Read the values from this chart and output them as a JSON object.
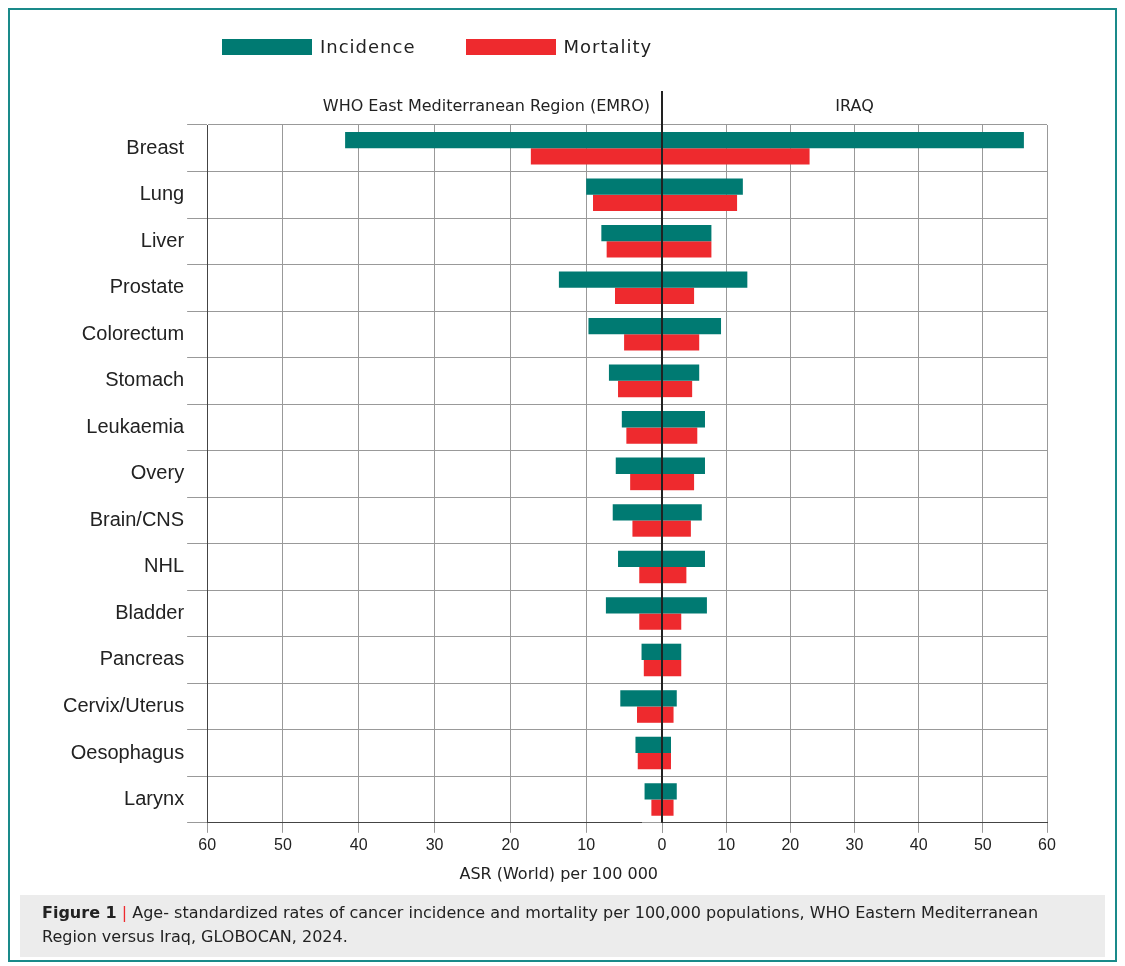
{
  "chart_data": [
    {
      "type": "bar",
      "orientation": "horizontal",
      "title": "WHO East Mediterranean Region (EMRO)",
      "categories": [
        "Breast",
        "Lung",
        "Liver",
        "Prostate",
        "Colorectum",
        "Stomach",
        "Leukaemia",
        "Overy",
        "Brain/CNS",
        "NHL",
        "Bladder",
        "Pancreas",
        "Cervix/Uterus",
        "Oesophagus",
        "Larynx"
      ],
      "series": [
        {
          "name": "Incidence",
          "color": "#007a72",
          "values": [
            41.8,
            10.0,
            8.0,
            13.6,
            9.7,
            7.0,
            5.3,
            6.1,
            6.5,
            5.8,
            7.4,
            2.7,
            5.5,
            3.5,
            2.3
          ]
        },
        {
          "name": "Mortality",
          "color": "#ee2a2e",
          "values": [
            17.3,
            9.1,
            7.3,
            6.2,
            5.0,
            5.8,
            4.7,
            4.2,
            3.9,
            3.0,
            3.0,
            2.4,
            3.3,
            3.2,
            1.4
          ]
        }
      ],
      "xlim": [
        60,
        0
      ],
      "xticks": [
        60,
        50,
        40,
        30,
        20,
        10,
        {
          "value": 0,
          "label": null
        }
      ],
      "xlabel": "ASR (World) per 100 000",
      "grid": true,
      "legend": "top",
      "annotations": [
        "Figure 1 | Age- standardized rates of cancer incidence and mortality per 100,000 populations, WHO Eastern Mediterranean Region versus Iraq, GLOBOCAN, 2024."
      ]
    },
    {
      "type": "bar",
      "orientation": "horizontal",
      "title": "IRAQ",
      "categories": [
        null,
        null,
        null,
        null,
        null,
        null,
        null,
        null,
        null,
        null,
        null,
        null,
        null,
        null,
        null
      ],
      "series": [
        {
          "color": "#007a72",
          "values": [
            56.4,
            12.6,
            7.7,
            13.3,
            9.2,
            5.8,
            6.7,
            6.7,
            6.2,
            6.7,
            7.0,
            3.0,
            2.3,
            1.4,
            2.3
          ]
        },
        {
          "color": "#ee2a2e",
          "values": [
            23.0,
            11.7,
            7.7,
            5.0,
            5.8,
            4.7,
            5.5,
            5.0,
            4.5,
            3.8,
            3.0,
            3.0,
            1.8,
            1.4,
            1.8
          ]
        }
      ],
      "xlim": [
        0,
        60
      ],
      "xticks": [
        0,
        10,
        20,
        30,
        40,
        50,
        60
      ],
      "grid": true,
      "tick_labels": "x"
    }
  ]
}
